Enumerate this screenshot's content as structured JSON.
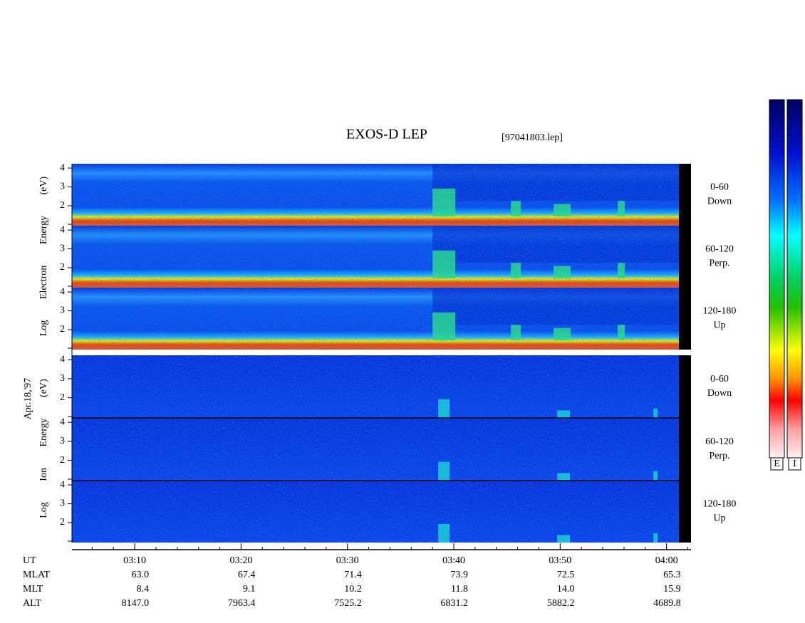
{
  "title": "EXOS-D LEP",
  "file": "[97041803.lep]",
  "date": "Apr.18,'97",
  "energy_axis": {
    "ylim": [
      0.94,
      4.23
    ],
    "yticks": [
      2,
      3,
      4
    ]
  },
  "electron": {
    "ylabel": "Log Electron Energy (eV)",
    "panels": [
      {
        "label": [
          "0-60",
          "Down"
        ]
      },
      {
        "label": [
          "60-120",
          "Perp."
        ]
      },
      {
        "label": [
          "120-180",
          "Up"
        ]
      }
    ]
  },
  "ion": {
    "ylabel": "Log Ion Energy (eV)",
    "panels": [
      {
        "label": [
          "0-60",
          "Down"
        ]
      },
      {
        "label": [
          "60-120",
          "Perp."
        ]
      },
      {
        "label": [
          "120-180",
          "Up"
        ]
      }
    ]
  },
  "time_axis": {
    "xlim": [
      184.1,
      242.3
    ],
    "xticks": [
      {
        "value": 190,
        "label": "03:10"
      },
      {
        "value": 200,
        "label": "03:20"
      },
      {
        "value": 210,
        "label": "03:30"
      },
      {
        "value": 220,
        "label": "03:40"
      },
      {
        "value": 230,
        "label": "03:50"
      },
      {
        "value": 240,
        "label": "04:00"
      }
    ]
  },
  "ephemeris": {
    "ut_label": "UT",
    "rows": [
      {
        "label": "MLAT",
        "values": [
          "63.0",
          "67.4",
          "71.4",
          "73.9",
          "72.5",
          "65.3"
        ]
      },
      {
        "label": "MLT",
        "values": [
          "8.4",
          "9.1",
          "10.2",
          "11.8",
          "14.0",
          "15.9"
        ]
      },
      {
        "label": "ALT",
        "values": [
          "8147.0",
          "7963.4",
          "7525.2",
          "6831.2",
          "5882.2",
          "4689.8"
        ]
      }
    ]
  },
  "colorbars": [
    "E",
    "I"
  ]
}
